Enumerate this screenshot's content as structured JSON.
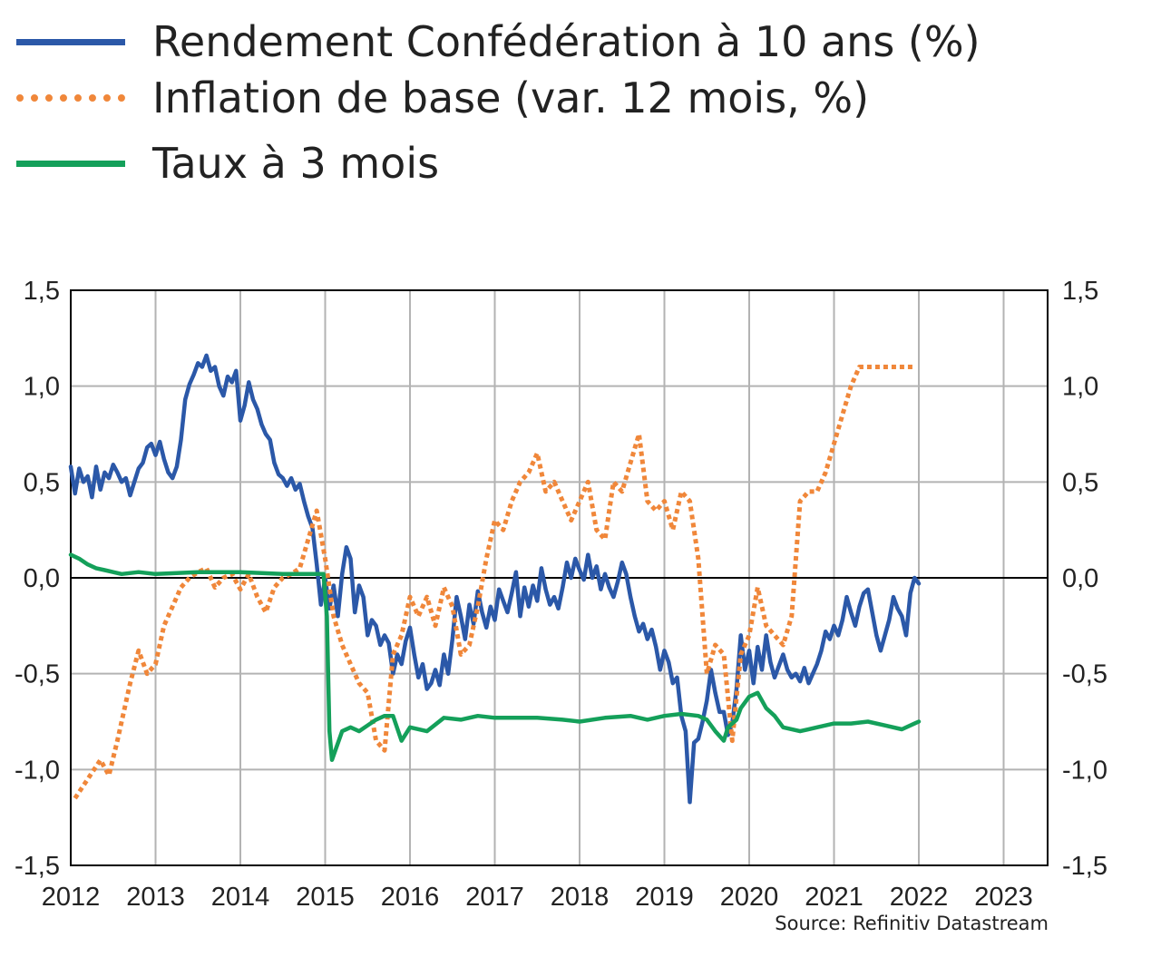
{
  "chart_data": {
    "type": "line",
    "title": "",
    "xlabel": "",
    "ylabel": "",
    "xlim": [
      2012,
      2023.5
    ],
    "ylim": [
      -1.5,
      1.5
    ],
    "x_ticks": [
      "2012",
      "2013",
      "2014",
      "2015",
      "2016",
      "2017",
      "2018",
      "2019",
      "2020",
      "2021",
      "2022",
      "2023"
    ],
    "y_ticks": [
      "1,5",
      "1,0",
      "0,5",
      "0,0",
      "-0,5",
      "-1,0",
      "-1,5"
    ],
    "y_tick_values": [
      1.5,
      1.0,
      0.5,
      0.0,
      -0.5,
      -1.0,
      -1.5
    ],
    "grid": true,
    "legend_position": "top-left",
    "source": "Source: Refinitiv Datastream",
    "series": [
      {
        "name": "Rendement Confédération à 10 ans (%)",
        "color": "#2b58a8",
        "style": "solid",
        "x": [
          2012.0,
          2012.05,
          2012.1,
          2012.15,
          2012.2,
          2012.25,
          2012.3,
          2012.35,
          2012.4,
          2012.45,
          2012.5,
          2012.55,
          2012.6,
          2012.65,
          2012.7,
          2012.75,
          2012.8,
          2012.85,
          2012.9,
          2012.95,
          2013.0,
          2013.05,
          2013.1,
          2013.15,
          2013.2,
          2013.25,
          2013.3,
          2013.35,
          2013.4,
          2013.45,
          2013.5,
          2013.55,
          2013.6,
          2013.65,
          2013.7,
          2013.75,
          2013.8,
          2013.85,
          2013.9,
          2013.95,
          2014.0,
          2014.05,
          2014.1,
          2014.15,
          2014.2,
          2014.25,
          2014.3,
          2014.35,
          2014.4,
          2014.45,
          2014.5,
          2014.55,
          2014.6,
          2014.65,
          2014.7,
          2014.75,
          2014.8,
          2014.85,
          2014.9,
          2014.95,
          2015.0,
          2015.05,
          2015.1,
          2015.15,
          2015.2,
          2015.25,
          2015.3,
          2015.35,
          2015.4,
          2015.45,
          2015.5,
          2015.55,
          2015.6,
          2015.65,
          2015.7,
          2015.75,
          2015.8,
          2015.85,
          2015.9,
          2015.95,
          2016.0,
          2016.05,
          2016.1,
          2016.15,
          2016.2,
          2016.25,
          2016.3,
          2016.35,
          2016.4,
          2016.45,
          2016.5,
          2016.55,
          2016.6,
          2016.65,
          2016.7,
          2016.75,
          2016.8,
          2016.85,
          2016.9,
          2016.95,
          2017.0,
          2017.05,
          2017.1,
          2017.15,
          2017.2,
          2017.25,
          2017.3,
          2017.35,
          2017.4,
          2017.45,
          2017.5,
          2017.55,
          2017.6,
          2017.65,
          2017.7,
          2017.75,
          2017.8,
          2017.85,
          2017.9,
          2017.95,
          2018.0,
          2018.05,
          2018.1,
          2018.15,
          2018.2,
          2018.25,
          2018.3,
          2018.35,
          2018.4,
          2018.45,
          2018.5,
          2018.55,
          2018.6,
          2018.65,
          2018.7,
          2018.75,
          2018.8,
          2018.85,
          2018.9,
          2018.95,
          2019.0,
          2019.05,
          2019.1,
          2019.15,
          2019.2,
          2019.25,
          2019.3,
          2019.35,
          2019.4,
          2019.45,
          2019.5,
          2019.55,
          2019.6,
          2019.65,
          2019.7,
          2019.75,
          2019.8,
          2019.85,
          2019.9,
          2019.95,
          2020.0,
          2020.05,
          2020.1,
          2020.15,
          2020.2,
          2020.25,
          2020.3,
          2020.35,
          2020.4,
          2020.45,
          2020.5,
          2020.55,
          2020.6,
          2020.65,
          2020.7,
          2020.75,
          2020.8,
          2020.85,
          2020.9,
          2020.95,
          2021.0,
          2021.05,
          2021.1,
          2021.15,
          2021.2,
          2021.25,
          2021.3,
          2021.35,
          2021.4,
          2021.45,
          2021.5,
          2021.55,
          2021.6,
          2021.65,
          2021.7,
          2021.75,
          2021.8,
          2021.85,
          2021.9,
          2021.95,
          2022.0
        ],
        "y": [
          0.58,
          0.44,
          0.57,
          0.5,
          0.53,
          0.42,
          0.58,
          0.46,
          0.55,
          0.52,
          0.59,
          0.55,
          0.5,
          0.52,
          0.43,
          0.5,
          0.57,
          0.6,
          0.68,
          0.7,
          0.64,
          0.71,
          0.62,
          0.55,
          0.52,
          0.58,
          0.72,
          0.93,
          1.01,
          1.06,
          1.12,
          1.1,
          1.16,
          1.08,
          1.1,
          1.0,
          0.95,
          1.05,
          1.02,
          1.08,
          0.82,
          0.9,
          1.02,
          0.93,
          0.88,
          0.8,
          0.75,
          0.72,
          0.6,
          0.54,
          0.52,
          0.48,
          0.52,
          0.46,
          0.49,
          0.4,
          0.32,
          0.26,
          0.07,
          -0.14,
          0.0,
          -0.16,
          -0.04,
          -0.2,
          0.02,
          0.16,
          0.1,
          -0.18,
          -0.04,
          -0.1,
          -0.3,
          -0.22,
          -0.25,
          -0.35,
          -0.3,
          -0.34,
          -0.5,
          -0.4,
          -0.45,
          -0.33,
          -0.26,
          -0.4,
          -0.52,
          -0.45,
          -0.58,
          -0.55,
          -0.48,
          -0.56,
          -0.4,
          -0.5,
          -0.32,
          -0.1,
          -0.2,
          -0.32,
          -0.14,
          -0.24,
          -0.07,
          -0.18,
          -0.26,
          -0.15,
          -0.22,
          -0.06,
          -0.12,
          -0.18,
          -0.08,
          0.03,
          -0.2,
          -0.05,
          -0.15,
          -0.04,
          -0.12,
          0.05,
          -0.06,
          -0.14,
          -0.1,
          -0.16,
          -0.05,
          0.08,
          0.0,
          0.1,
          0.04,
          -0.01,
          0.12,
          0.0,
          0.06,
          -0.06,
          0.02,
          -0.05,
          -0.1,
          -0.02,
          0.08,
          0.02,
          -0.1,
          -0.2,
          -0.28,
          -0.24,
          -0.32,
          -0.27,
          -0.36,
          -0.48,
          -0.38,
          -0.44,
          -0.55,
          -0.52,
          -0.72,
          -0.8,
          -1.17,
          -0.86,
          -0.84,
          -0.75,
          -0.64,
          -0.48,
          -0.6,
          -0.7,
          -0.7,
          -0.82,
          -0.76,
          -0.58,
          -0.3,
          -0.48,
          -0.38,
          -0.55,
          -0.36,
          -0.48,
          -0.3,
          -0.44,
          -0.52,
          -0.46,
          -0.4,
          -0.48,
          -0.52,
          -0.5,
          -0.54,
          -0.47,
          -0.55,
          -0.5,
          -0.45,
          -0.38,
          -0.28,
          -0.32,
          -0.25,
          -0.3,
          -0.22,
          -0.1,
          -0.18,
          -0.25,
          -0.15,
          -0.08,
          -0.06,
          -0.18,
          -0.3,
          -0.38,
          -0.3,
          -0.22,
          -0.1,
          -0.16,
          -0.2,
          -0.3,
          -0.08,
          0.0,
          -0.03
        ]
      },
      {
        "name": "Inflation de base (var. 12 mois, %)",
        "color": "#f0873a",
        "style": "dotted",
        "x": [
          2012.05,
          2012.2,
          2012.35,
          2012.45,
          2012.55,
          2012.7,
          2012.8,
          2012.9,
          2013.0,
          2013.1,
          2013.2,
          2013.3,
          2013.4,
          2013.5,
          2013.6,
          2013.7,
          2013.8,
          2013.9,
          2014.0,
          2014.1,
          2014.2,
          2014.3,
          2014.4,
          2014.5,
          2014.6,
          2014.7,
          2014.8,
          2014.9,
          2015.0,
          2015.1,
          2015.2,
          2015.3,
          2015.4,
          2015.5,
          2015.6,
          2015.7,
          2015.8,
          2015.9,
          2016.0,
          2016.1,
          2016.2,
          2016.3,
          2016.4,
          2016.5,
          2016.6,
          2016.7,
          2016.8,
          2016.9,
          2017.0,
          2017.1,
          2017.2,
          2017.3,
          2017.4,
          2017.5,
          2017.6,
          2017.7,
          2017.8,
          2017.9,
          2018.0,
          2018.1,
          2018.2,
          2018.3,
          2018.4,
          2018.5,
          2018.6,
          2018.7,
          2018.8,
          2018.9,
          2019.0,
          2019.1,
          2019.2,
          2019.3,
          2019.4,
          2019.5,
          2019.6,
          2019.7,
          2019.8,
          2019.9,
          2020.0,
          2020.1,
          2020.2,
          2020.3,
          2020.4,
          2020.5,
          2020.6,
          2020.7,
          2020.8,
          2020.9,
          2021.0,
          2021.1,
          2021.2,
          2021.3,
          2021.4,
          2021.5,
          2021.6,
          2021.7,
          2021.8,
          2021.9,
          2021.95
        ],
        "y": [
          -1.15,
          -1.05,
          -0.95,
          -1.03,
          -0.85,
          -0.55,
          -0.38,
          -0.5,
          -0.45,
          -0.25,
          -0.15,
          -0.05,
          0.0,
          0.03,
          0.05,
          -0.05,
          0.0,
          0.02,
          -0.06,
          0.02,
          -0.1,
          -0.18,
          -0.05,
          0.0,
          0.02,
          0.05,
          0.2,
          0.35,
          0.1,
          -0.2,
          -0.35,
          -0.45,
          -0.55,
          -0.6,
          -0.85,
          -0.9,
          -0.4,
          -0.3,
          -0.1,
          -0.2,
          -0.1,
          -0.25,
          -0.05,
          -0.15,
          -0.4,
          -0.35,
          -0.15,
          0.1,
          0.3,
          0.25,
          0.4,
          0.5,
          0.55,
          0.65,
          0.45,
          0.5,
          0.4,
          0.3,
          0.4,
          0.5,
          0.25,
          0.2,
          0.5,
          0.45,
          0.6,
          0.75,
          0.4,
          0.35,
          0.4,
          0.25,
          0.45,
          0.4,
          0.1,
          -0.5,
          -0.35,
          -0.4,
          -0.85,
          -0.4,
          -0.3,
          -0.05,
          -0.25,
          -0.3,
          -0.35,
          -0.2,
          0.4,
          0.45,
          0.45,
          0.55,
          0.7,
          0.85,
          1.0,
          1.1,
          1.1,
          1.1,
          1.1,
          1.1,
          1.1,
          1.1,
          1.1
        ]
      },
      {
        "name": "Taux à 3 mois",
        "color": "#14a05a",
        "style": "solid",
        "x": [
          2012.0,
          2012.1,
          2012.2,
          2012.3,
          2012.4,
          2012.5,
          2012.6,
          2012.8,
          2013.0,
          2013.5,
          2014.0,
          2014.5,
          2014.8,
          2014.98,
          2015.02,
          2015.05,
          2015.08,
          2015.12,
          2015.2,
          2015.3,
          2015.4,
          2015.5,
          2015.6,
          2015.7,
          2015.8,
          2015.9,
          2016.0,
          2016.2,
          2016.4,
          2016.6,
          2016.8,
          2017.0,
          2017.2,
          2017.5,
          2017.8,
          2018.0,
          2018.3,
          2018.6,
          2018.8,
          2019.0,
          2019.2,
          2019.4,
          2019.5,
          2019.6,
          2019.7,
          2019.75,
          2019.8,
          2019.85,
          2019.9,
          2020.0,
          2020.1,
          2020.2,
          2020.3,
          2020.4,
          2020.6,
          2020.8,
          2021.0,
          2021.2,
          2021.4,
          2021.6,
          2021.8,
          2021.95,
          2022.0
        ],
        "y": [
          0.12,
          0.1,
          0.07,
          0.05,
          0.04,
          0.03,
          0.02,
          0.03,
          0.02,
          0.03,
          0.03,
          0.02,
          0.02,
          0.02,
          -0.2,
          -0.8,
          -0.95,
          -0.9,
          -0.8,
          -0.78,
          -0.8,
          -0.77,
          -0.74,
          -0.72,
          -0.72,
          -0.85,
          -0.78,
          -0.8,
          -0.73,
          -0.74,
          -0.72,
          -0.73,
          -0.73,
          -0.73,
          -0.74,
          -0.75,
          -0.73,
          -0.72,
          -0.74,
          -0.72,
          -0.71,
          -0.72,
          -0.74,
          -0.8,
          -0.85,
          -0.78,
          -0.76,
          -0.74,
          -0.68,
          -0.62,
          -0.6,
          -0.68,
          -0.72,
          -0.78,
          -0.8,
          -0.78,
          -0.76,
          -0.76,
          -0.75,
          -0.77,
          -0.79,
          -0.76,
          -0.75
        ]
      }
    ]
  }
}
